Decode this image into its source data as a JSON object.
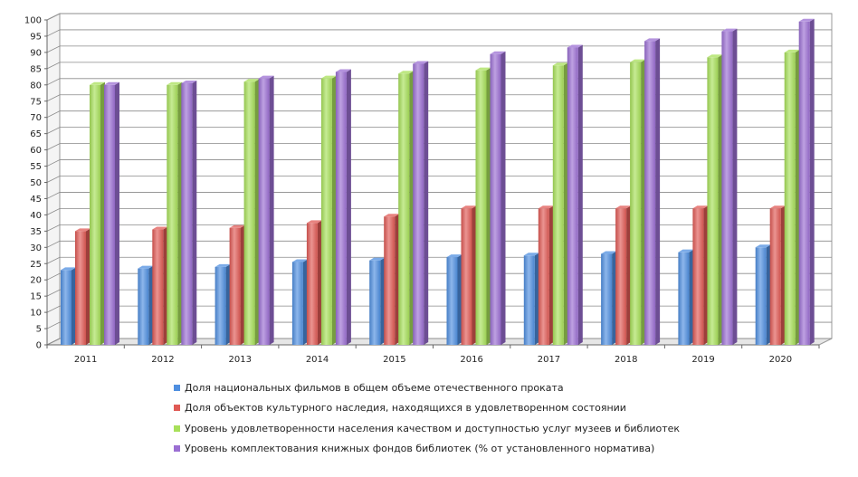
{
  "chart_data": {
    "type": "bar",
    "title": "",
    "xlabel": "",
    "ylabel": "",
    "ylim": [
      0,
      100
    ],
    "yticks": [
      "0",
      "5",
      "10",
      "15",
      "20",
      "25",
      "30",
      "35",
      "40",
      "45",
      "50",
      "55",
      "60",
      "65",
      "70",
      "75",
      "80",
      "85",
      "90",
      "95",
      "100"
    ],
    "categories": [
      "2011",
      "2012",
      "2013",
      "2014",
      "2015",
      "2016",
      "2017",
      "2018",
      "2019",
      "2020"
    ],
    "grid": true,
    "legend_position": "bottom",
    "series": [
      {
        "name": "Доля национальных фильмов в общем объеме отечественного проката",
        "color": "#4f8fe0",
        "values": [
          23,
          23.5,
          24,
          25.5,
          26,
          27,
          27.5,
          28,
          28.5,
          30
        ]
      },
      {
        "name": "Доля объектов культурного наследия, находящихся в удовлетворенном состоянии",
        "color": "#e05a55",
        "values": [
          35,
          35.5,
          36,
          37.5,
          39.5,
          42,
          42,
          42,
          42,
          42
        ]
      },
      {
        "name": "Уровень удовлетворенности населения качеством и доступностью услуг музеев и библиотек",
        "color": "#a8e05a",
        "values": [
          80,
          80,
          81,
          82,
          83.5,
          84.5,
          86,
          87,
          88.5,
          90
        ]
      },
      {
        "name": "Уровень комплектования книжных фондов библиотек (% от установленного норматива)",
        "color": "#9b6fd3",
        "values": [
          80,
          80.5,
          82,
          84,
          86.5,
          89.5,
          91.5,
          93.5,
          96.5,
          99.5
        ]
      }
    ]
  }
}
